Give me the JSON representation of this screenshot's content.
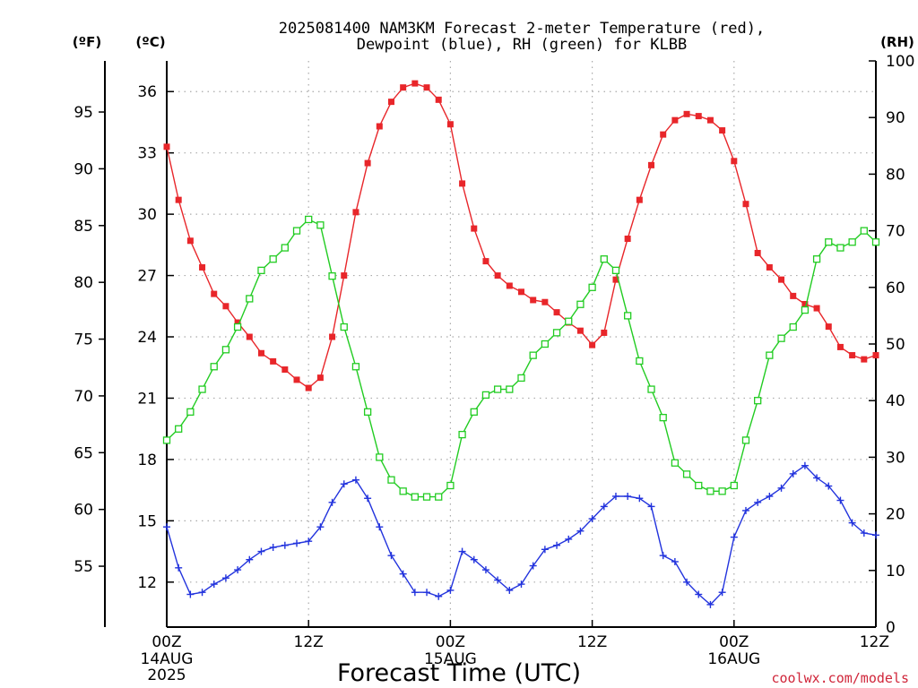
{
  "chart_data": {
    "type": "line",
    "title_line1": "2025081400 NAM3KM Forecast 2-meter Temperature (red),",
    "title_line2": "Dewpoint (blue), RH (green) for KLBB",
    "xlabel": "Forecast Time (UTC)",
    "credit": "coolwx.com/models",
    "unit_f": "(ºF)",
    "unit_c": "(ºC)",
    "unit_rh": "(RH)",
    "x_hours_range": [
      0,
      60
    ],
    "x_ticks": [
      {
        "hour": 0,
        "label": "00Z",
        "sub1": "14AUG",
        "sub2": "2025"
      },
      {
        "hour": 12,
        "label": "12Z",
        "sub1": "",
        "sub2": ""
      },
      {
        "hour": 24,
        "label": "00Z",
        "sub1": "15AUG",
        "sub2": ""
      },
      {
        "hour": 36,
        "label": "12Z",
        "sub1": "",
        "sub2": ""
      },
      {
        "hour": 48,
        "label": "00Z",
        "sub1": "16AUG",
        "sub2": ""
      },
      {
        "hour": 60,
        "label": "12Z",
        "sub1": "",
        "sub2": ""
      }
    ],
    "celsius_range": [
      9.8,
      37.5
    ],
    "celsius_ticks": [
      "12",
      "15",
      "18",
      "21",
      "24",
      "27",
      "30",
      "33",
      "36"
    ],
    "fahrenheit_ticks": [
      "55",
      "60",
      "65",
      "70",
      "75",
      "80",
      "85",
      "90",
      "95"
    ],
    "rh_range": [
      0,
      100
    ],
    "rh_ticks": [
      "0",
      "10",
      "20",
      "30",
      "40",
      "50",
      "60",
      "70",
      "80",
      "90",
      "100"
    ],
    "grid": true,
    "hours": [
      0,
      1,
      2,
      3,
      4,
      5,
      6,
      7,
      8,
      9,
      10,
      11,
      12,
      13,
      14,
      15,
      16,
      17,
      18,
      19,
      20,
      21,
      22,
      23,
      24,
      25,
      26,
      27,
      28,
      29,
      30,
      31,
      32,
      33,
      34,
      35,
      36,
      37,
      38,
      39,
      40,
      41,
      42,
      43,
      44,
      45,
      46,
      47,
      48,
      49,
      50,
      51,
      52,
      53,
      54,
      55,
      56,
      57,
      58,
      59,
      60
    ],
    "series": [
      {
        "name": "Temperature",
        "color": "#e8262a",
        "marker": "filled-square",
        "axis": "celsius",
        "values": [
          33.3,
          30.7,
          28.7,
          27.4,
          26.1,
          25.5,
          24.7,
          24.0,
          23.2,
          22.8,
          22.4,
          21.9,
          21.5,
          22.0,
          24.0,
          27.0,
          30.1,
          32.5,
          34.3,
          35.5,
          36.2,
          36.4,
          36.2,
          35.6,
          34.4,
          31.5,
          29.3,
          27.7,
          27.0,
          26.5,
          26.2,
          25.8,
          25.7,
          25.2,
          24.7,
          24.3,
          23.6,
          24.2,
          26.8,
          28.8,
          30.7,
          32.4,
          33.9,
          34.6,
          34.9,
          34.8,
          34.6,
          34.1,
          32.6,
          30.5,
          28.1,
          27.4,
          26.8,
          26.0,
          25.6,
          25.4,
          24.5,
          23.5,
          23.1,
          22.9,
          23.1
        ]
      },
      {
        "name": "Dewpoint",
        "color": "#2233dd",
        "marker": "plus",
        "axis": "celsius",
        "values": [
          14.7,
          12.7,
          11.4,
          11.5,
          11.9,
          12.2,
          12.6,
          13.1,
          13.5,
          13.7,
          13.8,
          13.9,
          14.0,
          14.7,
          15.9,
          16.8,
          17.0,
          16.1,
          14.7,
          13.3,
          12.4,
          11.5,
          11.5,
          11.3,
          11.6,
          13.5,
          13.1,
          12.6,
          12.1,
          11.6,
          11.9,
          12.8,
          13.6,
          13.8,
          14.1,
          14.5,
          15.1,
          15.7,
          16.2,
          16.2,
          16.1,
          15.7,
          13.3,
          13.0,
          12.0,
          11.4,
          10.9,
          11.5,
          14.2,
          15.5,
          15.9,
          16.2,
          16.6,
          17.3,
          17.7,
          17.1,
          16.7,
          16.0,
          14.9,
          14.4,
          14.3
        ]
      },
      {
        "name": "RH",
        "color": "#22cc22",
        "marker": "open-square",
        "axis": "rh",
        "values": [
          33,
          35,
          38,
          42,
          46,
          49,
          53,
          58,
          63,
          65,
          67,
          70,
          72,
          71,
          62,
          53,
          46,
          38,
          30,
          26,
          24,
          23,
          23,
          23,
          25,
          34,
          38,
          41,
          42,
          42,
          44,
          48,
          50,
          52,
          54,
          57,
          60,
          65,
          63,
          55,
          47,
          42,
          37,
          29,
          27,
          25,
          24,
          24,
          25,
          33,
          40,
          48,
          51,
          53,
          56,
          65,
          68,
          67,
          68,
          70,
          68
        ]
      }
    ]
  }
}
